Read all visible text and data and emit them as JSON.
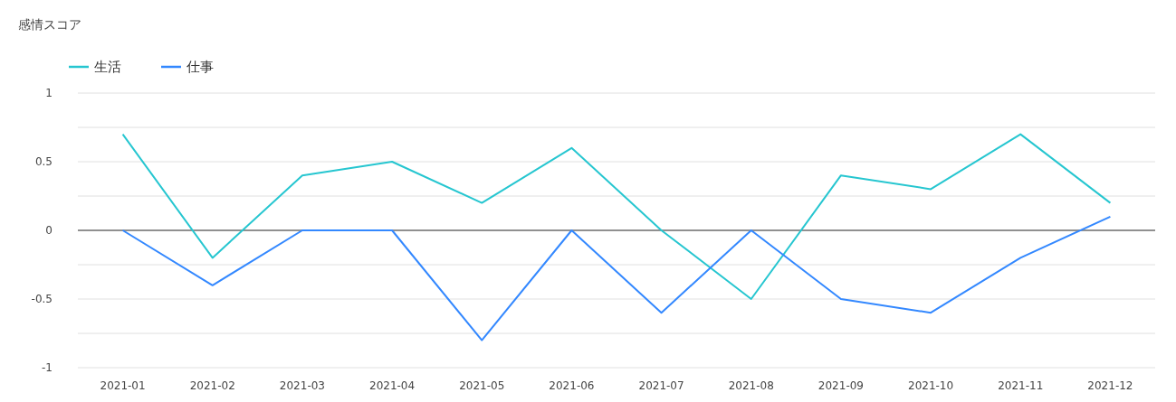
{
  "chart_data": {
    "type": "line",
    "title": "感情スコア",
    "categories": [
      "2021-01",
      "2021-02",
      "2021-03",
      "2021-04",
      "2021-05",
      "2021-06",
      "2021-07",
      "2021-08",
      "2021-09",
      "2021-10",
      "2021-11",
      "2021-12"
    ],
    "series": [
      {
        "name": "生活",
        "color": "#26c6d0",
        "values": [
          0.7,
          -0.2,
          0.4,
          0.5,
          0.2,
          0.6,
          0,
          -0.5,
          0.4,
          0.3,
          0.7,
          0.2
        ]
      },
      {
        "name": "仕事",
        "color": "#3388ff",
        "values": [
          0,
          -0.4,
          0,
          0,
          -0.8,
          0,
          -0.6,
          0,
          -0.5,
          -0.6,
          -0.2,
          0.1
        ]
      }
    ],
    "ylim": [
      -1,
      1
    ],
    "yticks": [
      -1,
      {
        "value": -0.75,
        "label": null
      },
      -0.5,
      {
        "value": -0.25,
        "label": null
      },
      0,
      {
        "value": 0.25,
        "label": null
      },
      0.5,
      {
        "value": 0.75,
        "label": null
      },
      1
    ],
    "grid": "y",
    "legend": "top left",
    "marker": "none",
    "line_style": "solid",
    "ref_lines": [
      {
        "axis": "y",
        "value": 0,
        "color": "#333333"
      }
    ]
  }
}
